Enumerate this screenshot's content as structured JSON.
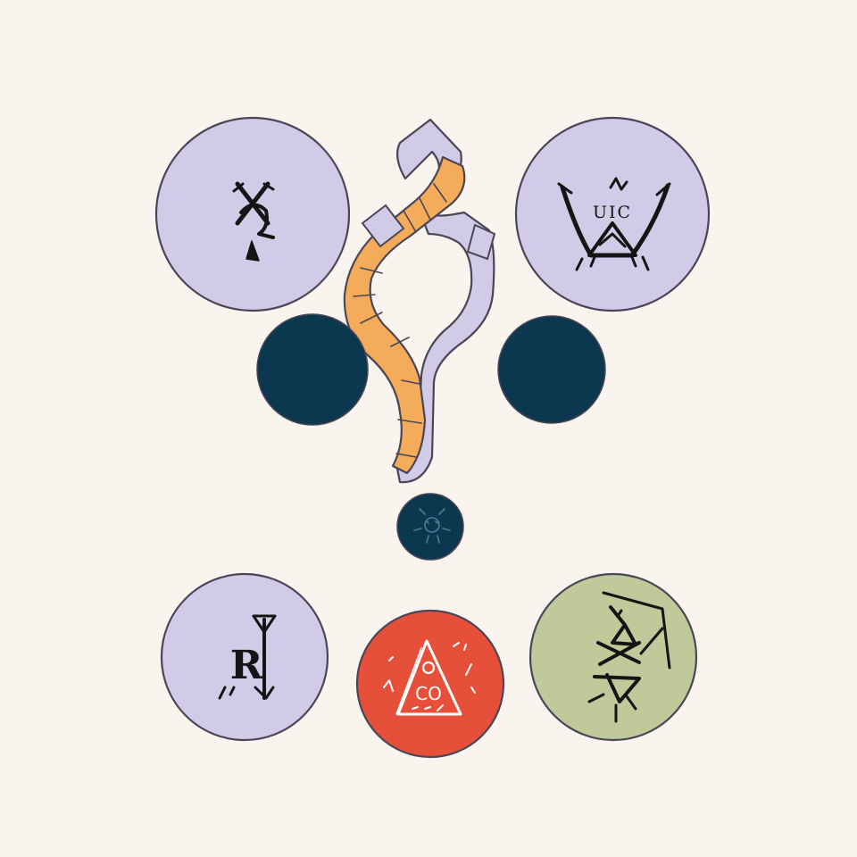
{
  "colors": {
    "background": "#f9f5ee",
    "lavender": "#d2cbe8",
    "navy": "#0b374f",
    "orange": "#f4ac5a",
    "red": "#e6503b",
    "sage": "#c0c99a",
    "outline": "#4a4656",
    "ink": "#151515",
    "ink_light": "#ffffff",
    "glyph_blue": "#4d7d9a"
  },
  "tokens": [
    {
      "name": "top-left-rune-token",
      "fill": "lavender",
      "icon": "x-rune-icon"
    },
    {
      "name": "top-right-rune-token",
      "fill": "lavender",
      "icon": "crown-triangle-rune-icon"
    },
    {
      "name": "left-navy-orb",
      "fill": "navy"
    },
    {
      "name": "right-navy-orb",
      "fill": "navy"
    },
    {
      "name": "center-small-navy-orb",
      "fill": "navy",
      "icon": "sprite-glyph-icon"
    },
    {
      "name": "bottom-left-rune-token",
      "fill": "lavender",
      "icon": "r-rune-icon"
    },
    {
      "name": "bottom-center-rune-token",
      "fill": "red",
      "icon": "eye-triangle-rune-icon"
    },
    {
      "name": "bottom-right-rune-token",
      "fill": "sage",
      "icon": "sigil-rune-icon"
    }
  ],
  "ribbon": {
    "icon": "twisted-ribbon-icon"
  }
}
